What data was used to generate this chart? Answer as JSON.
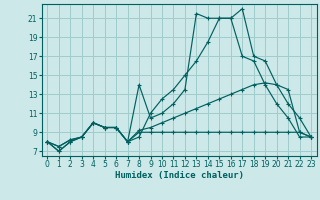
{
  "xlabel": "Humidex (Indice chaleur)",
  "bg_color": "#cce8e8",
  "grid_color": "#a0cccc",
  "line_color": "#006060",
  "xlim": [
    -0.5,
    23.5
  ],
  "ylim": [
    6.5,
    22.5
  ],
  "xticks": [
    0,
    1,
    2,
    3,
    4,
    5,
    6,
    7,
    8,
    9,
    10,
    11,
    12,
    13,
    14,
    15,
    16,
    17,
    18,
    19,
    20,
    21,
    22,
    23
  ],
  "yticks": [
    7,
    9,
    11,
    13,
    15,
    17,
    19,
    21
  ],
  "line1_x": [
    0,
    1,
    2,
    3,
    4,
    5,
    6,
    7,
    8,
    9,
    10,
    11,
    12,
    13,
    14,
    15,
    16,
    17,
    18,
    19,
    20,
    21,
    22,
    23
  ],
  "line1_y": [
    8.0,
    7.0,
    8.0,
    8.5,
    10.0,
    9.5,
    9.5,
    8.0,
    8.5,
    11.0,
    12.5,
    13.5,
    15.0,
    16.5,
    18.5,
    21.0,
    21.0,
    22.0,
    17.0,
    16.5,
    14.0,
    12.0,
    10.5,
    8.5
  ],
  "line2_x": [
    0,
    1,
    2,
    3,
    4,
    5,
    6,
    7,
    8,
    9,
    10,
    11,
    12,
    13,
    14,
    15,
    16,
    17,
    18,
    19,
    20,
    21,
    22,
    23
  ],
  "line2_y": [
    8.0,
    7.0,
    8.0,
    8.5,
    10.0,
    9.5,
    9.5,
    8.0,
    14.0,
    10.5,
    11.0,
    12.0,
    13.5,
    21.5,
    21.0,
    21.0,
    21.0,
    17.0,
    16.5,
    14.0,
    12.0,
    10.5,
    8.5,
    8.5
  ],
  "line3_x": [
    0,
    1,
    2,
    3,
    4,
    5,
    6,
    7,
    8,
    9,
    10,
    11,
    12,
    13,
    14,
    15,
    16,
    17,
    18,
    19,
    20,
    21,
    22,
    23
  ],
  "line3_y": [
    8.0,
    7.5,
    8.2,
    8.5,
    10.0,
    9.5,
    9.5,
    8.0,
    9.2,
    9.5,
    10.0,
    10.5,
    11.0,
    11.5,
    12.0,
    12.5,
    13.0,
    13.5,
    14.0,
    14.2,
    14.0,
    13.5,
    9.0,
    8.5
  ],
  "line4_x": [
    0,
    1,
    2,
    3,
    4,
    5,
    6,
    7,
    8,
    9,
    10,
    11,
    12,
    13,
    14,
    15,
    16,
    17,
    18,
    19,
    20,
    21,
    22,
    23
  ],
  "line4_y": [
    8.0,
    7.5,
    8.2,
    8.5,
    10.0,
    9.5,
    9.5,
    8.0,
    9.0,
    9.0,
    9.0,
    9.0,
    9.0,
    9.0,
    9.0,
    9.0,
    9.0,
    9.0,
    9.0,
    9.0,
    9.0,
    9.0,
    9.0,
    8.5
  ]
}
